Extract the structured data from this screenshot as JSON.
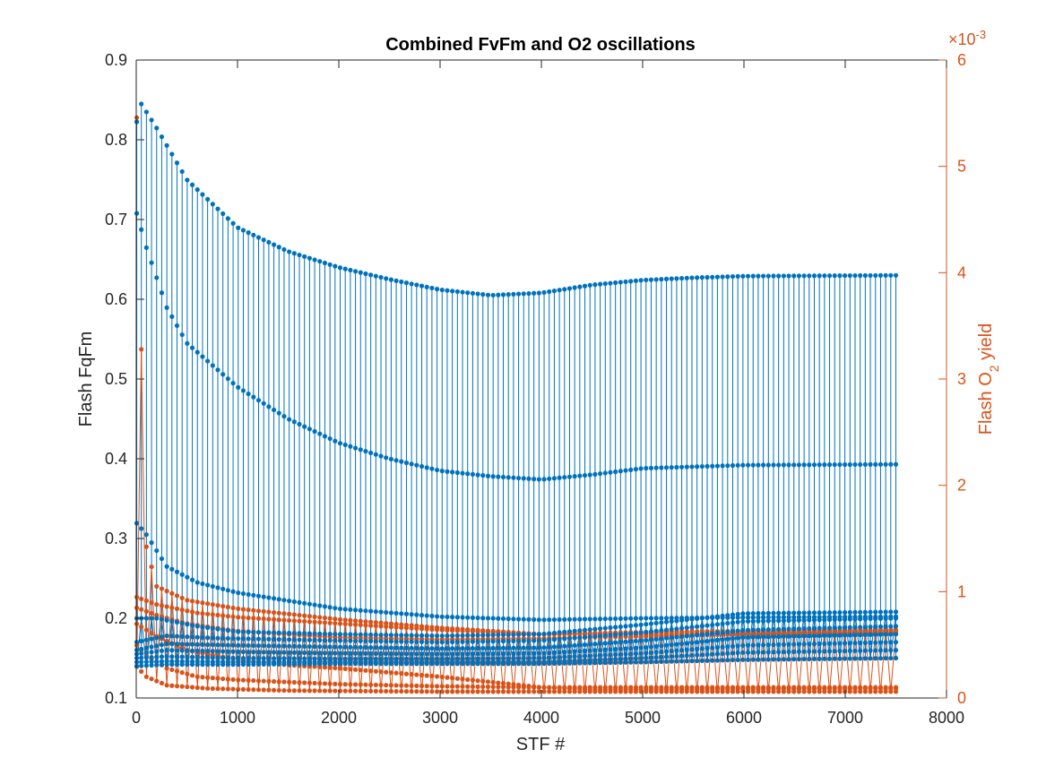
{
  "chart_data": {
    "type": "line",
    "title": "Combined FvFm and O2 oscillations",
    "xlabel": "STF #",
    "ylabel_left": "Flash FqFm",
    "ylabel_right_prefix": "Flash O",
    "ylabel_right_sub": "2",
    "ylabel_right_suffix": " yield",
    "right_exponent_base": "×10",
    "right_exponent_power": "-3",
    "xlim": [
      0,
      8000
    ],
    "ylim_left": [
      0.1,
      0.9
    ],
    "ylim_right": [
      0,
      6
    ],
    "x_ticks": [
      "0",
      "1000",
      "2000",
      "3000",
      "4000",
      "5000",
      "6000",
      "7000",
      "8000"
    ],
    "y_left_ticks": [
      "0.1",
      "0.2",
      "0.3",
      "0.4",
      "0.5",
      "0.6",
      "0.7",
      "0.8",
      "0.9"
    ],
    "y_right_ticks": [
      "0",
      "1",
      "2",
      "3",
      "4",
      "5",
      "6"
    ],
    "colors": {
      "left": "#0072bd",
      "right": "#d95319",
      "axes": "#262626"
    },
    "x_end": 7500,
    "stem_count": 150,
    "series": [
      {
        "axis": "left",
        "points": [
          [
            0,
            0.82
          ],
          [
            50,
            0.845
          ],
          [
            200,
            0.815
          ],
          [
            500,
            0.75
          ],
          [
            1000,
            0.69
          ],
          [
            1500,
            0.66
          ],
          [
            2000,
            0.64
          ],
          [
            2500,
            0.625
          ],
          [
            3000,
            0.612
          ],
          [
            3500,
            0.605
          ],
          [
            4000,
            0.608
          ],
          [
            4500,
            0.618
          ],
          [
            5000,
            0.624
          ],
          [
            5500,
            0.627
          ],
          [
            6000,
            0.629
          ],
          [
            7500,
            0.63
          ]
        ]
      },
      {
        "axis": "left",
        "points": [
          [
            0,
            0.71
          ],
          [
            100,
            0.665
          ],
          [
            300,
            0.59
          ],
          [
            500,
            0.545
          ],
          [
            1000,
            0.49
          ],
          [
            1500,
            0.45
          ],
          [
            2000,
            0.42
          ],
          [
            2500,
            0.4
          ],
          [
            3000,
            0.385
          ],
          [
            3500,
            0.378
          ],
          [
            4000,
            0.374
          ],
          [
            4500,
            0.38
          ],
          [
            5000,
            0.388
          ],
          [
            6000,
            0.392
          ],
          [
            7500,
            0.393
          ]
        ]
      },
      {
        "axis": "left",
        "points": [
          [
            0,
            0.32
          ],
          [
            100,
            0.305
          ],
          [
            300,
            0.265
          ],
          [
            600,
            0.245
          ],
          [
            1000,
            0.232
          ],
          [
            1500,
            0.222
          ],
          [
            2000,
            0.212
          ],
          [
            3000,
            0.202
          ],
          [
            4000,
            0.198
          ],
          [
            5000,
            0.2
          ],
          [
            6000,
            0.201
          ],
          [
            7500,
            0.202
          ]
        ]
      },
      {
        "axis": "left",
        "points": [
          [
            0,
            0.2
          ],
          [
            200,
            0.2
          ],
          [
            600,
            0.19
          ],
          [
            1000,
            0.183
          ],
          [
            2000,
            0.18
          ],
          [
            3000,
            0.178
          ],
          [
            4000,
            0.18
          ],
          [
            5000,
            0.192
          ],
          [
            6000,
            0.206
          ],
          [
            7500,
            0.208
          ]
        ]
      },
      {
        "axis": "left",
        "points": [
          [
            0,
            0.17
          ],
          [
            300,
            0.178
          ],
          [
            800,
            0.175
          ],
          [
            2000,
            0.172
          ],
          [
            3000,
            0.17
          ],
          [
            4000,
            0.172
          ],
          [
            5000,
            0.182
          ],
          [
            6000,
            0.196
          ],
          [
            7500,
            0.2
          ]
        ]
      },
      {
        "axis": "left",
        "points": [
          [
            0,
            0.16
          ],
          [
            300,
            0.168
          ],
          [
            1000,
            0.166
          ],
          [
            2000,
            0.164
          ],
          [
            3000,
            0.162
          ],
          [
            4000,
            0.163
          ],
          [
            5000,
            0.172
          ],
          [
            6000,
            0.185
          ],
          [
            7500,
            0.19
          ]
        ]
      },
      {
        "axis": "left",
        "points": [
          [
            0,
            0.155
          ],
          [
            300,
            0.16
          ],
          [
            1000,
            0.158
          ],
          [
            2000,
            0.156
          ],
          [
            3000,
            0.155
          ],
          [
            4000,
            0.156
          ],
          [
            5000,
            0.163
          ],
          [
            6000,
            0.176
          ],
          [
            7500,
            0.18
          ]
        ]
      },
      {
        "axis": "left",
        "points": [
          [
            0,
            0.15
          ],
          [
            300,
            0.152
          ],
          [
            1000,
            0.15
          ],
          [
            2000,
            0.149
          ],
          [
            3000,
            0.149
          ],
          [
            4000,
            0.15
          ],
          [
            5000,
            0.156
          ],
          [
            6000,
            0.166
          ],
          [
            7500,
            0.17
          ]
        ]
      },
      {
        "axis": "left",
        "points": [
          [
            0,
            0.145
          ],
          [
            300,
            0.146
          ],
          [
            1000,
            0.145
          ],
          [
            2000,
            0.145
          ],
          [
            4000,
            0.145
          ],
          [
            5000,
            0.15
          ],
          [
            6000,
            0.157
          ],
          [
            7500,
            0.16
          ]
        ]
      },
      {
        "axis": "left",
        "points": [
          [
            0,
            0.14
          ],
          [
            300,
            0.142
          ],
          [
            1000,
            0.142
          ],
          [
            2000,
            0.143
          ],
          [
            4000,
            0.143
          ],
          [
            5000,
            0.145
          ],
          [
            6000,
            0.148
          ],
          [
            7500,
            0.15
          ]
        ]
      },
      {
        "axis": "right",
        "points": [
          [
            0,
            5.65
          ],
          [
            30,
            4.5
          ],
          [
            80,
            1.5
          ],
          [
            200,
            1.05
          ],
          [
            500,
            0.92
          ],
          [
            1000,
            0.84
          ],
          [
            2000,
            0.74
          ],
          [
            3000,
            0.66
          ],
          [
            4000,
            0.6
          ],
          [
            5000,
            0.62
          ],
          [
            6000,
            0.63
          ],
          [
            7500,
            0.64
          ]
        ]
      },
      {
        "axis": "right",
        "points": [
          [
            0,
            0.95
          ],
          [
            200,
            0.88
          ],
          [
            600,
            0.8
          ],
          [
            1000,
            0.76
          ],
          [
            2000,
            0.7
          ],
          [
            3000,
            0.64
          ],
          [
            4000,
            0.6
          ],
          [
            5000,
            0.6
          ],
          [
            6000,
            0.61
          ],
          [
            7500,
            0.62
          ]
        ]
      },
      {
        "axis": "right",
        "points": [
          [
            0,
            0.85
          ],
          [
            200,
            0.78
          ],
          [
            500,
            0.7
          ],
          [
            1000,
            0.63
          ],
          [
            2000,
            0.57
          ],
          [
            3000,
            0.55
          ],
          [
            4000,
            0.56
          ],
          [
            5000,
            0.58
          ],
          [
            6000,
            0.6
          ],
          [
            7500,
            0.61
          ]
        ]
      },
      {
        "axis": "right",
        "points": [
          [
            0,
            0.7
          ],
          [
            200,
            0.58
          ],
          [
            500,
            0.45
          ],
          [
            1000,
            0.36
          ],
          [
            1500,
            0.31
          ],
          [
            2000,
            0.28
          ],
          [
            2500,
            0.24
          ],
          [
            3000,
            0.2
          ],
          [
            3500,
            0.15
          ],
          [
            4000,
            0.1
          ],
          [
            4500,
            0.08
          ],
          [
            7500,
            0.09
          ]
        ]
      },
      {
        "axis": "right",
        "points": [
          [
            0,
            0.5
          ],
          [
            100,
            0.4
          ],
          [
            300,
            0.28
          ],
          [
            600,
            0.2
          ],
          [
            1000,
            0.17
          ],
          [
            2000,
            0.13
          ],
          [
            3000,
            0.11
          ],
          [
            4000,
            0.1
          ],
          [
            5000,
            0.1
          ],
          [
            6000,
            0.1
          ],
          [
            7500,
            0.1
          ]
        ]
      },
      {
        "axis": "right",
        "points": [
          [
            0,
            0.3
          ],
          [
            100,
            0.2
          ],
          [
            300,
            0.12
          ],
          [
            700,
            0.09
          ],
          [
            1500,
            0.07
          ],
          [
            3000,
            0.06
          ],
          [
            5000,
            0.06
          ],
          [
            7500,
            0.06
          ]
        ]
      }
    ]
  }
}
